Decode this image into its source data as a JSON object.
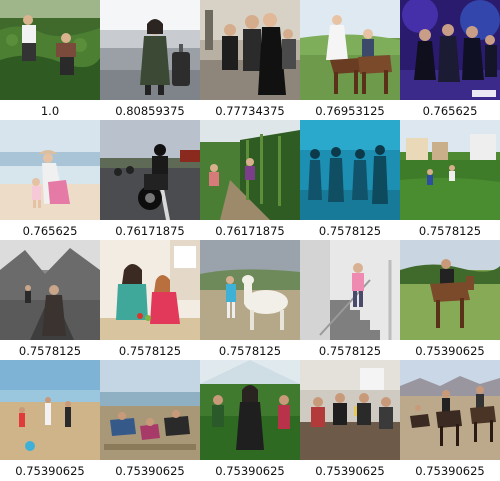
{
  "results": [
    {
      "score": "1.0",
      "scene": "farm-field-two-people-icon"
    },
    {
      "score": "0.80859375",
      "scene": "woman-with-suitcase-icon"
    },
    {
      "score": "0.77734375",
      "scene": "group-of-people-street-icon"
    },
    {
      "score": "0.76953125",
      "scene": "horse-riders-grassland-icon"
    },
    {
      "score": "0.765625",
      "scene": "dancing-party-stage-icon"
    },
    {
      "score": "0.765625",
      "scene": "beach-mother-child-icon"
    },
    {
      "score": "0.76171875",
      "scene": "motorcycle-road-icon"
    },
    {
      "score": "0.76171875",
      "scene": "corn-field-people-icon"
    },
    {
      "score": "0.7578125",
      "scene": "underwater-divers-icon"
    },
    {
      "score": "0.7578125",
      "scene": "green-field-houses-icon"
    },
    {
      "score": "0.7578125",
      "scene": "mountain-road-walkers-icon"
    },
    {
      "score": "0.7578125",
      "scene": "kitchen-mother-daughter-icon"
    },
    {
      "score": "0.7578125",
      "scene": "girl-with-alpaca-icon"
    },
    {
      "score": "0.7578125",
      "scene": "girl-on-stairs-icon"
    },
    {
      "score": "0.75390625",
      "scene": "man-on-horse-field-icon"
    },
    {
      "score": "0.75390625",
      "scene": "beach-walkers-icon"
    },
    {
      "score": "0.75390625",
      "scene": "beach-sand-diggers-icon"
    },
    {
      "score": "0.75390625",
      "scene": "greenhouse-women-icon"
    },
    {
      "score": "0.75390625",
      "scene": "office-meeting-icon"
    },
    {
      "score": "0.75390625",
      "scene": "desert-horse-riders-icon"
    }
  ]
}
